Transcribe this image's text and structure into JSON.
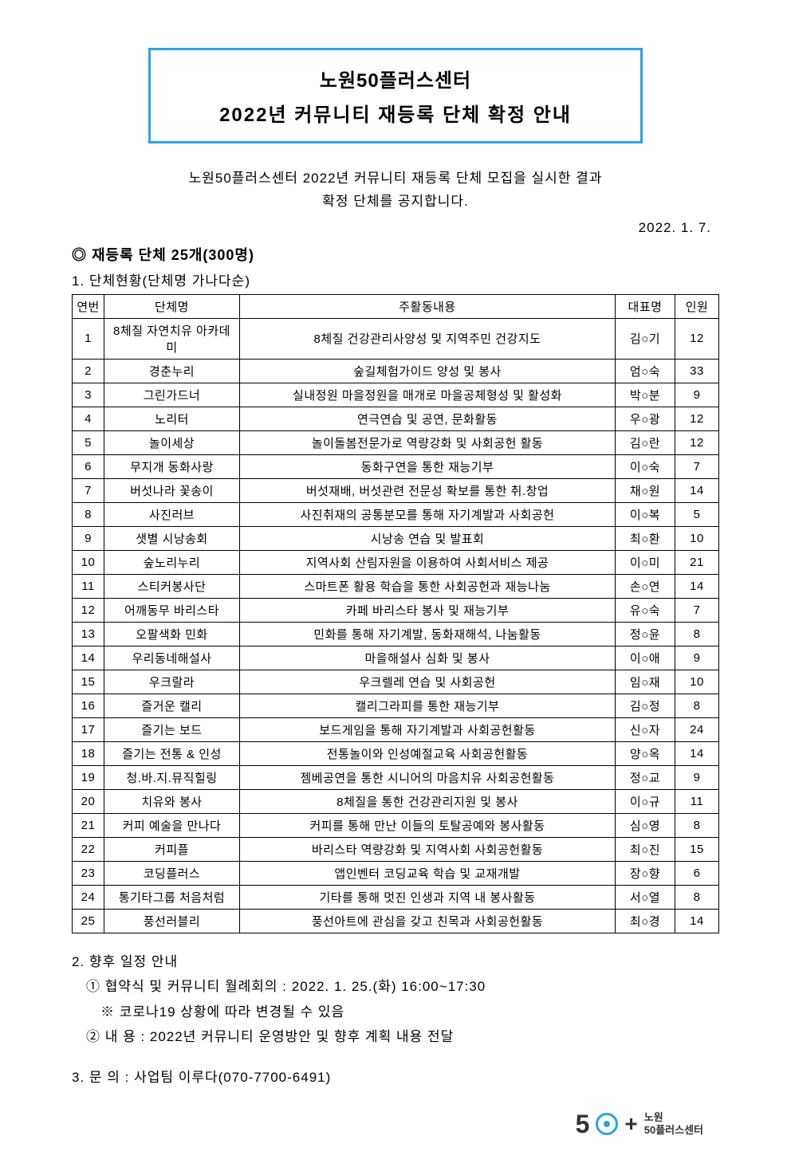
{
  "title": {
    "line1": "노원50플러스센터",
    "line2": "2022년 커뮤니티 재등록 단체 확정 안내"
  },
  "intro": {
    "line1": "노원50플러스센터 2022년 커뮤니티 재등록 단체 모집을 실시한 결과",
    "line2": "확정 단체를 공지합니다."
  },
  "date": "2022. 1. 7.",
  "summary_heading": "◎ 재등록 단체 25개(300명)",
  "section1_heading": "1. 단체현황(단체명 가나다순)",
  "table": {
    "headers": {
      "num": "연번",
      "name": "단체명",
      "activity": "주활동내용",
      "leader": "대표명",
      "count": "인원"
    },
    "rows": [
      {
        "num": "1",
        "name": "8체질 자연치유 아카데미",
        "activity": "8체질 건강관리사양성 및 지역주민 건강지도",
        "leader": "김○기",
        "count": "12"
      },
      {
        "num": "2",
        "name": "경춘누리",
        "activity": "숲길체험가이드 양성 및 봉사",
        "leader": "엄○숙",
        "count": "33"
      },
      {
        "num": "3",
        "name": "그린가드너",
        "activity": "실내정원 마을정원을 매개로 마을공체형성 및 활성화",
        "leader": "박○분",
        "count": "9"
      },
      {
        "num": "4",
        "name": "노리터",
        "activity": "연극연습 및 공연, 문화활동",
        "leader": "우○광",
        "count": "12"
      },
      {
        "num": "5",
        "name": "놀이세상",
        "activity": "놀이돌봄전문가로 역량강화 및 사회공헌 활동",
        "leader": "김○란",
        "count": "12"
      },
      {
        "num": "6",
        "name": "무지개 동화사랑",
        "activity": "동화구연을 통한 재능기부",
        "leader": "이○숙",
        "count": "7"
      },
      {
        "num": "7",
        "name": "버섯나라 꽃송이",
        "activity": "버섯재배, 버섯관련 전문성 확보를 통한 취.창업",
        "leader": "채○원",
        "count": "14"
      },
      {
        "num": "8",
        "name": "사진러브",
        "activity": "사진취재의 공통분모를 통해 자기계발과 사회공헌",
        "leader": "이○복",
        "count": "5"
      },
      {
        "num": "9",
        "name": "샛별 시낭송회",
        "activity": "시낭송 연습 및 발표회",
        "leader": "최○환",
        "count": "10"
      },
      {
        "num": "10",
        "name": "숲노리누리",
        "activity": "지역사회 산림자원을 이용하여 사회서비스 제공",
        "leader": "이○미",
        "count": "21"
      },
      {
        "num": "11",
        "name": "스티커봉사단",
        "activity": "스마트폰 활용 학습을 통한 사회공헌과 재능나눔",
        "leader": "손○연",
        "count": "14"
      },
      {
        "num": "12",
        "name": "어깨동무 바리스타",
        "activity": "카페 바리스타 봉사 및 재능기부",
        "leader": "유○숙",
        "count": "7"
      },
      {
        "num": "13",
        "name": "오팔색화 민화",
        "activity": "민화를 통해 자기계발, 동화재해석, 나눔활동",
        "leader": "정○윤",
        "count": "8"
      },
      {
        "num": "14",
        "name": "우리동네해설사",
        "activity": "마을해설사 심화 및 봉사",
        "leader": "이○애",
        "count": "9"
      },
      {
        "num": "15",
        "name": "우크랄라",
        "activity": "우크렐레 연습 및 사회공헌",
        "leader": "임○재",
        "count": "10"
      },
      {
        "num": "16",
        "name": "즐거운 캘리",
        "activity": "캘리그라피를 통한 재능기부",
        "leader": "김○정",
        "count": "8"
      },
      {
        "num": "17",
        "name": "즐기는 보드",
        "activity": "보드게임을 통해 자기계발과 사회공헌활동",
        "leader": "신○자",
        "count": "24"
      },
      {
        "num": "18",
        "name": "즐기는 전통 & 인성",
        "activity": "전통놀이와 인성예절교육 사회공헌활동",
        "leader": "양○옥",
        "count": "14"
      },
      {
        "num": "19",
        "name": "청.바.지.뮤직힐링",
        "activity": "젬베공연을 통한 시니어의 마음치유 사회공헌활동",
        "leader": "정○교",
        "count": "9"
      },
      {
        "num": "20",
        "name": "치유와 봉사",
        "activity": "8체질을 통한 건강관리지원 및 봉사",
        "leader": "이○규",
        "count": "11"
      },
      {
        "num": "21",
        "name": "커피 예술을 만나다",
        "activity": "커피를 통해 만난 이들의 토탈공예와 봉사활동",
        "leader": "심○영",
        "count": "8"
      },
      {
        "num": "22",
        "name": "커피플",
        "activity": "바리스타 역량강화 및 지역사회 사회공헌활동",
        "leader": "최○진",
        "count": "15"
      },
      {
        "num": "23",
        "name": "코딩플러스",
        "activity": "앱인벤터 코딩교육 학습 및 교재개발",
        "leader": "장○향",
        "count": "6"
      },
      {
        "num": "24",
        "name": "통기타그룹 처음처럼",
        "activity": "기타를 통해 멋진 인생과 지역 내 봉사활동",
        "leader": "서○열",
        "count": "8"
      },
      {
        "num": "25",
        "name": "풍선러블리",
        "activity": "풍선아트에 관심을 갖고 친목과 사회공헌활동",
        "leader": "최○경",
        "count": "14"
      }
    ]
  },
  "schedule": {
    "heading": "2. 향후 일정 안내",
    "item1": "① 협약식 및 커뮤니티 월례회의 : 2022. 1. 25.(화) 16:00~17:30",
    "note": "※ 코로나19 상황에 따라 변경될 수 있음",
    "item2": "② 내  용 : 2022년 커뮤니티 운영방안 및 향후 계획 내용 전달"
  },
  "contact": "3. 문  의 : 사업팀 이루다(070-7700-6491)",
  "logo": {
    "five": "5",
    "plus": "+",
    "text1": "노원",
    "text2": "50플러스센터"
  },
  "style": {
    "border_color": "#2ba3e0",
    "text_color": "#000000",
    "background": "#ffffff"
  }
}
